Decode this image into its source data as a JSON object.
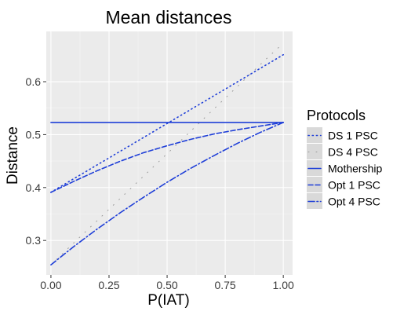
{
  "chart_data": {
    "type": "line",
    "title": "Mean distances",
    "xlabel": "P(IAT)",
    "ylabel": "Distance",
    "xlim": [
      -0.02,
      1.04
    ],
    "ylim": [
      0.235,
      0.695
    ],
    "x_ticks": [
      0.0,
      0.25,
      0.5,
      0.75,
      1.0
    ],
    "x_tick_labels": [
      "0.00",
      "0.25",
      "0.50",
      "0.75",
      "1.00"
    ],
    "y_ticks": [
      0.3,
      0.4,
      0.5,
      0.6
    ],
    "y_tick_labels": [
      "0.3",
      "0.4",
      "0.5",
      "0.6"
    ],
    "grid": true,
    "legend": {
      "title": "Protocols",
      "placement": "right",
      "entries": [
        "DS 1 PSC",
        "DS 4 PSC",
        "Mothership",
        "Opt 1 PSC",
        "Opt 4 PSC"
      ]
    },
    "x": [
      0.0,
      0.1,
      0.2,
      0.3,
      0.4,
      0.5,
      0.6,
      0.7,
      0.8,
      0.9,
      1.0
    ],
    "series": [
      {
        "name": "DS 1 PSC",
        "color": "#1f3fd8",
        "dash": "dotted",
        "values": [
          0.391,
          0.417,
          0.443,
          0.469,
          0.495,
          0.521,
          0.547,
          0.573,
          0.599,
          0.625,
          0.651
        ]
      },
      {
        "name": "DS 4 PSC",
        "color": "#9a9a9a",
        "dash": "sparse-dotted",
        "values": [
          0.254,
          0.296,
          0.338,
          0.38,
          0.422,
          0.464,
          0.506,
          0.548,
          0.59,
          0.632,
          0.673
        ]
      },
      {
        "name": "Mothership",
        "color": "#1f3fd8",
        "dash": "solid",
        "values": [
          0.523,
          0.523,
          0.523,
          0.523,
          0.523,
          0.523,
          0.523,
          0.523,
          0.523,
          0.523,
          0.523
        ]
      },
      {
        "name": "Opt 1 PSC",
        "color": "#1f3fd8",
        "dash": "dashed",
        "values": [
          0.391,
          0.412,
          0.432,
          0.45,
          0.466,
          0.479,
          0.491,
          0.501,
          0.509,
          0.516,
          0.523
        ]
      },
      {
        "name": "Opt 4 PSC",
        "color": "#1f3fd8",
        "dash": "dashdot",
        "values": [
          0.254,
          0.289,
          0.322,
          0.353,
          0.382,
          0.41,
          0.436,
          0.46,
          0.483,
          0.504,
          0.523
        ]
      }
    ]
  }
}
